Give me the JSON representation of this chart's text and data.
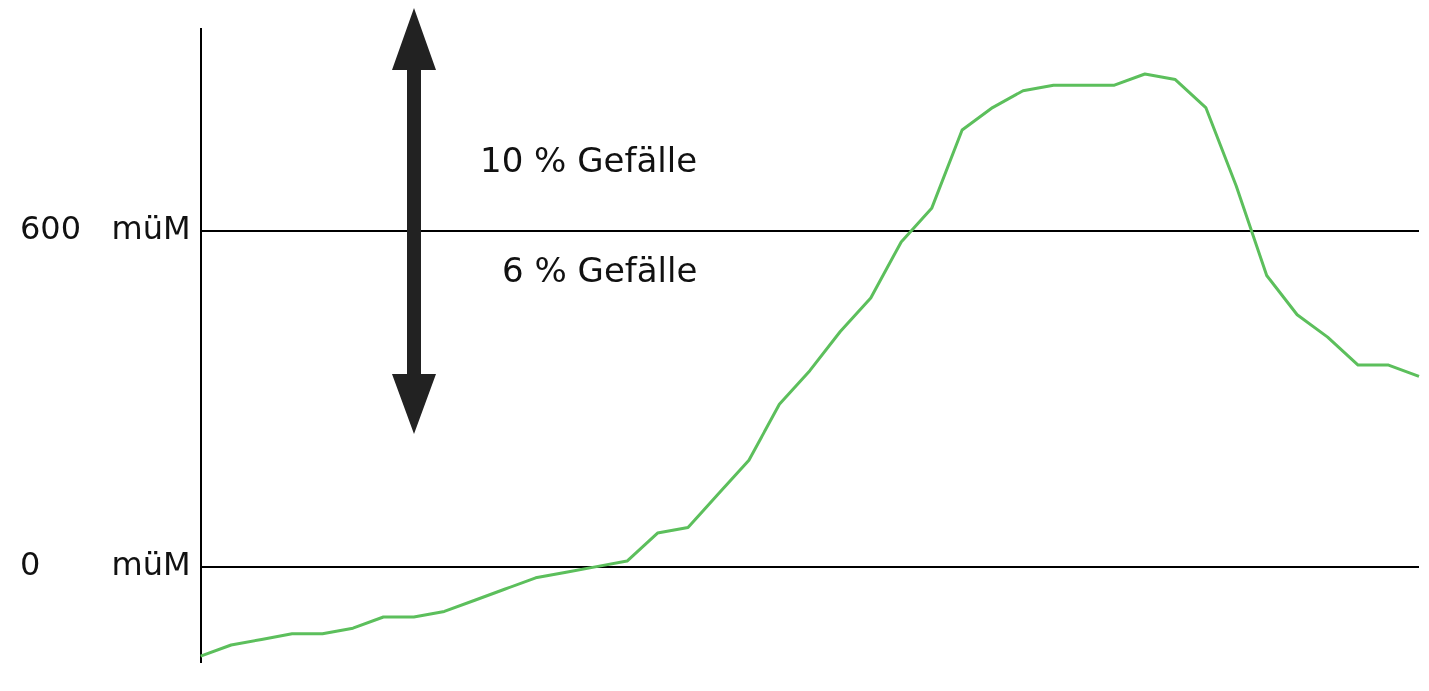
{
  "chart_data": {
    "type": "line",
    "categories": [
      null,
      null,
      null,
      null,
      null,
      null,
      null,
      null,
      null,
      null,
      null,
      null,
      null,
      null,
      null,
      null,
      null,
      null,
      null,
      null,
      null,
      null,
      null,
      null,
      null,
      null,
      null,
      null,
      null,
      null,
      null,
      null,
      null,
      null,
      null,
      null,
      null,
      null,
      null,
      null,
      null
    ],
    "series": [
      {
        "color": "#5cbf5c",
        "values": [
          -160,
          -140,
          -130,
          -120,
          -120,
          -110,
          -90,
          -90,
          -80,
          -60,
          -40,
          -20,
          -10,
          0,
          10,
          60,
          70,
          130,
          190,
          290,
          350,
          420,
          480,
          580,
          640,
          780,
          820,
          850,
          860,
          860,
          860,
          880,
          870,
          820,
          680,
          520,
          450,
          410,
          360,
          360,
          340
        ]
      }
    ],
    "ylim": [
      -170,
      960
    ],
    "tick_labels": "y",
    "grid": "y",
    "legend": false,
    "marker": "none",
    "yticks": [
      {
        "value": 0,
        "label": "0       müM"
      },
      {
        "value": 600,
        "label": "600   müM"
      }
    ],
    "annotations": [
      "10 % Gefälle",
      "6 % Gefälle"
    ]
  }
}
